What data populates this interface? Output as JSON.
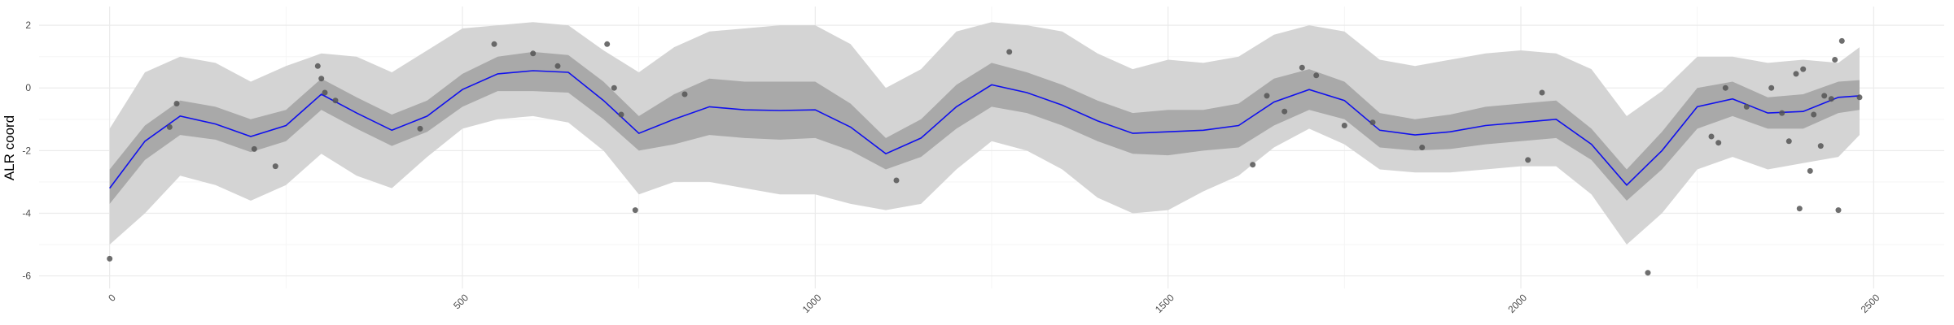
{
  "chart_data": {
    "type": "line",
    "title": "",
    "xlabel": "",
    "ylabel": "ALR coord",
    "xlim": [
      -100,
      2600
    ],
    "ylim": [
      -6.4,
      2.6
    ],
    "x_ticks": [
      0,
      500,
      1000,
      1500,
      2000,
      2500
    ],
    "x_tick_labels": [
      "0",
      "500",
      "1000",
      "1500",
      "2000",
      "2500"
    ],
    "y_ticks": [
      -6,
      -4,
      -2,
      0,
      2
    ],
    "y_tick_labels": [
      "-6",
      "-4",
      "-2",
      "0",
      "2"
    ],
    "grid": true,
    "legend": "none",
    "colors": {
      "mean_line": "#1010ee",
      "inner_band": "#a9a9a9",
      "outer_band": "#d4d4d4",
      "points": "#555555",
      "grid_major": "#ebebeb",
      "grid_minor": "#f5f5f5"
    },
    "series": [
      {
        "kind": "mean",
        "x": [
          0,
          50,
          100,
          150,
          200,
          250,
          300,
          350,
          400,
          450,
          500,
          550,
          600,
          650,
          700,
          750,
          800,
          850,
          900,
          950,
          1000,
          1050,
          1100,
          1150,
          1200,
          1250,
          1300,
          1350,
          1400,
          1450,
          1500,
          1550,
          1600,
          1650,
          1700,
          1750,
          1800,
          1850,
          1900,
          1950,
          2000,
          2050,
          2100,
          2150,
          2200,
          2250,
          2300,
          2350,
          2400,
          2450,
          2480
        ],
        "y": [
          -3.2,
          -1.7,
          -0.9,
          -1.15,
          -1.55,
          -1.2,
          -0.2,
          -0.8,
          -1.35,
          -0.9,
          -0.05,
          0.45,
          0.55,
          0.5,
          -0.4,
          -1.45,
          -1.0,
          -0.6,
          -0.7,
          -0.72,
          -0.7,
          -1.25,
          -2.1,
          -1.6,
          -0.6,
          0.1,
          -0.15,
          -0.55,
          -1.05,
          -1.45,
          -1.4,
          -1.35,
          -1.2,
          -0.45,
          -0.05,
          -0.4,
          -1.35,
          -1.5,
          -1.4,
          -1.2,
          -1.1,
          -1.0,
          -1.8,
          -3.1,
          -2.0,
          -0.6,
          -0.35,
          -0.8,
          -0.75,
          -0.3,
          -0.25
        ]
      },
      {
        "kind": "inner_band",
        "x": [
          0,
          50,
          100,
          150,
          200,
          250,
          300,
          350,
          400,
          450,
          500,
          550,
          600,
          650,
          700,
          750,
          800,
          850,
          900,
          950,
          1000,
          1050,
          1100,
          1150,
          1200,
          1250,
          1300,
          1350,
          1400,
          1450,
          1500,
          1550,
          1600,
          1650,
          1700,
          1750,
          1800,
          1850,
          1900,
          1950,
          2000,
          2050,
          2100,
          2150,
          2200,
          2250,
          2300,
          2350,
          2400,
          2450,
          2480
        ],
        "lower": [
          -3.7,
          -2.3,
          -1.5,
          -1.65,
          -2.05,
          -1.7,
          -0.7,
          -1.3,
          -1.85,
          -1.4,
          -0.6,
          -0.1,
          -0.1,
          -0.15,
          -1.0,
          -2.0,
          -1.8,
          -1.5,
          -1.6,
          -1.65,
          -1.6,
          -2.0,
          -2.6,
          -2.2,
          -1.3,
          -0.6,
          -0.8,
          -1.2,
          -1.7,
          -2.1,
          -2.15,
          -2.0,
          -1.9,
          -1.2,
          -0.7,
          -1.0,
          -1.9,
          -2.0,
          -1.95,
          -1.8,
          -1.7,
          -1.6,
          -2.3,
          -3.6,
          -2.6,
          -1.3,
          -0.9,
          -1.3,
          -1.3,
          -0.8,
          -0.7
        ],
        "upper": [
          -2.6,
          -1.2,
          -0.4,
          -0.6,
          -1.0,
          -0.7,
          0.3,
          -0.3,
          -0.85,
          -0.4,
          0.45,
          1.0,
          1.15,
          1.05,
          0.2,
          -0.9,
          -0.2,
          0.3,
          0.2,
          0.2,
          0.2,
          -0.5,
          -1.6,
          -1.0,
          0.1,
          0.8,
          0.5,
          0.1,
          -0.4,
          -0.8,
          -0.7,
          -0.7,
          -0.5,
          0.3,
          0.6,
          0.2,
          -0.8,
          -1.0,
          -0.85,
          -0.6,
          -0.5,
          -0.4,
          -1.3,
          -2.6,
          -1.4,
          0.0,
          0.2,
          -0.3,
          -0.2,
          0.2,
          0.25
        ]
      },
      {
        "kind": "outer_band",
        "x": [
          0,
          50,
          100,
          150,
          200,
          250,
          300,
          350,
          400,
          450,
          500,
          550,
          600,
          650,
          700,
          750,
          800,
          850,
          900,
          950,
          1000,
          1050,
          1100,
          1150,
          1200,
          1250,
          1300,
          1350,
          1400,
          1450,
          1500,
          1550,
          1600,
          1650,
          1700,
          1750,
          1800,
          1850,
          1900,
          1950,
          2000,
          2050,
          2100,
          2150,
          2200,
          2250,
          2300,
          2350,
          2400,
          2450,
          2480
        ],
        "lower": [
          -5.0,
          -4.0,
          -2.8,
          -3.1,
          -3.6,
          -3.1,
          -2.1,
          -2.8,
          -3.2,
          -2.2,
          -1.3,
          -1.0,
          -0.9,
          -1.1,
          -2.0,
          -3.4,
          -3.0,
          -3.0,
          -3.2,
          -3.4,
          -3.4,
          -3.7,
          -3.9,
          -3.7,
          -2.6,
          -1.7,
          -2.0,
          -2.6,
          -3.5,
          -4.0,
          -3.9,
          -3.3,
          -2.8,
          -1.9,
          -1.3,
          -1.8,
          -2.6,
          -2.7,
          -2.7,
          -2.6,
          -2.5,
          -2.5,
          -3.4,
          -5.0,
          -4.0,
          -2.6,
          -2.2,
          -2.6,
          -2.4,
          -2.2,
          -1.5
        ],
        "upper": [
          -1.3,
          0.5,
          1.0,
          0.8,
          0.2,
          0.7,
          1.1,
          1.0,
          0.5,
          1.2,
          1.9,
          2.0,
          2.1,
          2.0,
          1.2,
          0.5,
          1.3,
          1.8,
          1.9,
          2.0,
          2.0,
          1.4,
          0.0,
          0.6,
          1.8,
          2.1,
          2.0,
          1.8,
          1.1,
          0.6,
          0.9,
          0.8,
          1.0,
          1.7,
          2.0,
          1.8,
          0.9,
          0.7,
          0.9,
          1.1,
          1.2,
          1.1,
          0.6,
          -0.9,
          -0.1,
          1.0,
          1.0,
          0.8,
          0.9,
          0.8,
          1.3
        ]
      },
      {
        "kind": "points",
        "x": [
          0,
          85,
          95,
          205,
          235,
          295,
          300,
          305,
          320,
          440,
          545,
          600,
          635,
          705,
          715,
          725,
          745,
          815,
          1115,
          1275,
          1620,
          1640,
          1665,
          1690,
          1710,
          1750,
          1790,
          1860,
          2010,
          2030,
          2180,
          2270,
          2280,
          2290,
          2320,
          2355,
          2370,
          2380,
          2390,
          2395,
          2400,
          2410,
          2415,
          2425,
          2430,
          2440,
          2445,
          2450,
          2455,
          2480
        ],
        "y": [
          -5.45,
          -1.25,
          -0.5,
          -1.95,
          -2.5,
          0.7,
          0.3,
          -0.15,
          -0.4,
          -1.3,
          1.4,
          1.1,
          0.7,
          1.4,
          0.0,
          -0.85,
          -3.9,
          -0.2,
          -2.95,
          1.15,
          -2.45,
          -0.25,
          -0.75,
          0.65,
          0.4,
          -1.2,
          -1.1,
          -1.9,
          -2.3,
          -0.15,
          -5.9,
          -1.55,
          -1.75,
          0.0,
          -0.6,
          0.0,
          -0.8,
          -1.7,
          0.45,
          -3.85,
          0.6,
          -2.65,
          -0.85,
          -1.85,
          -0.25,
          -0.35,
          0.9,
          -3.9,
          1.5,
          -0.3
        ]
      }
    ]
  }
}
